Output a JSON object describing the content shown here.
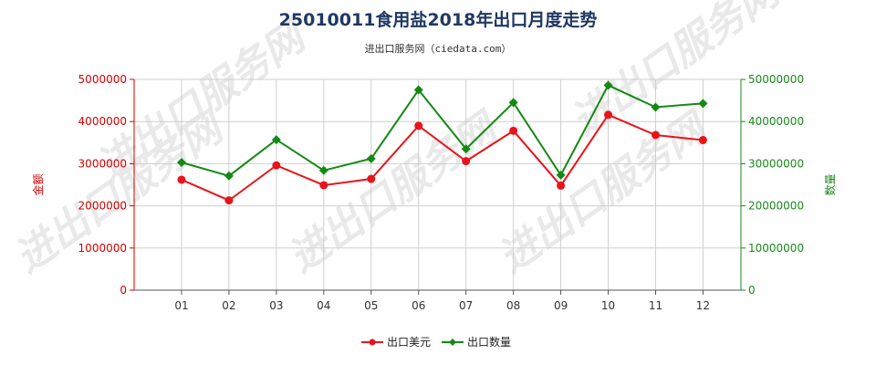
{
  "chart_data": {
    "type": "line",
    "title": "25010011食用盐2018年出口月度走势",
    "subtitle": "进出口服务网（ciedata.com）",
    "categories": [
      "01",
      "02",
      "03",
      "04",
      "05",
      "06",
      "07",
      "08",
      "09",
      "10",
      "11",
      "12"
    ],
    "y_left": {
      "label": "金额",
      "ylim": [
        0,
        5000000
      ],
      "ticks": [
        "0",
        "1000000",
        "2000000",
        "3000000",
        "4000000",
        "5000000"
      ],
      "color": "#d40000"
    },
    "y_right": {
      "label": "数量",
      "ylim": [
        0,
        50000000
      ],
      "ticks": [
        "0",
        "10000000",
        "20000000",
        "30000000",
        "40000000",
        "50000000"
      ],
      "color": "#1a8a1a"
    },
    "series": [
      {
        "name": "出口美元",
        "axis": "left",
        "color": "#e8141a",
        "marker": "circle",
        "values": [
          2620000,
          2130000,
          2960000,
          2490000,
          2640000,
          3900000,
          3060000,
          3780000,
          2480000,
          4160000,
          3680000,
          3560000
        ]
      },
      {
        "name": "出口数量",
        "axis": "right",
        "color": "#138a13",
        "marker": "diamond",
        "values": [
          30300000,
          27100000,
          35700000,
          28400000,
          31200000,
          47500000,
          33500000,
          44500000,
          27300000,
          48600000,
          43400000,
          44300000
        ]
      }
    ],
    "grid": true,
    "legend_position": "bottom-center"
  },
  "watermark_text": "进出口服务网"
}
